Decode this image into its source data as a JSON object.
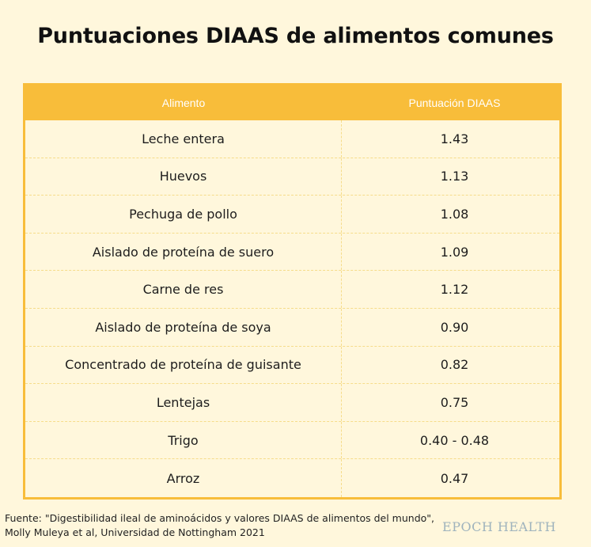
{
  "title": "Puntuaciones DIAAS de alimentos comunes",
  "chart_data": {
    "type": "table",
    "columns": [
      "Alimento",
      "Puntuación DIAAS"
    ],
    "rows": [
      {
        "food": "Leche entera",
        "score": "1.43"
      },
      {
        "food": "Huevos",
        "score": "1.13"
      },
      {
        "food": "Pechuga de pollo",
        "score": "1.08"
      },
      {
        "food": "Aislado de proteína de suero",
        "score": "1.09"
      },
      {
        "food": "Carne de res",
        "score": "1.12"
      },
      {
        "food": "Aislado de proteína de soya",
        "score": "0.90"
      },
      {
        "food": "Concentrado de proteína de guisante",
        "score": "0.82"
      },
      {
        "food": "Lentejas",
        "score": "0.75"
      },
      {
        "food": "Trigo",
        "score": "0.40 - 0.48"
      },
      {
        "food": "Arroz",
        "score": "0.47"
      }
    ]
  },
  "source": {
    "line1": "Fuente: \"Digestibilidad ileal de aminoácidos y valores DIAAS de alimentos del mundo\",",
    "line2": "Molly Muleya et al, Universidad de Nottingham 2021"
  },
  "brand": "EPOCH HEALTH",
  "colors": {
    "header": "#f8bd3a",
    "background": "#fff7dc",
    "divider": "#f6dc8a"
  }
}
